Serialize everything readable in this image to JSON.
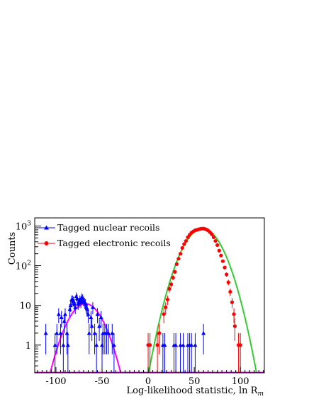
{
  "chart_data": {
    "type": "scatter",
    "xlabel": "Log-likelihood statistic, ln R",
    "xlabel_sub": "m",
    "ylabel": "Counts",
    "xlim": [
      -123,
      126
    ],
    "ylim": [
      0.2,
      1600
    ],
    "y_scale": "log",
    "x_ticks": [
      -100,
      -50,
      0,
      50,
      100
    ],
    "y_ticks": [
      {
        "value": 1,
        "base": "1",
        "exp": ""
      },
      {
        "value": 10,
        "base": "10",
        "exp": ""
      },
      {
        "value": 100,
        "base": "10",
        "exp": "2"
      },
      {
        "value": 1000,
        "base": "10",
        "exp": "3"
      }
    ],
    "grid": false,
    "legend_position": "top-left",
    "legend": [
      {
        "label": "Tagged nuclear recoils",
        "series": "nuclear"
      },
      {
        "label": "Tagged electronic recoils",
        "series": "electronic"
      }
    ],
    "colors": {
      "nuclear": "#0000ff",
      "electronic": "#ff0000",
      "nuclear_fit": "#ff00ff",
      "electronic_fit": "#33cc33",
      "axis": "#000000"
    },
    "series": [
      {
        "name": "Tagged nuclear recoils",
        "id": "nuclear",
        "marker": "triangle",
        "points": [
          [
            -111,
            2
          ],
          [
            -101,
            1
          ],
          [
            -99,
            2
          ],
          [
            -97,
            6
          ],
          [
            -95,
            2
          ],
          [
            -94,
            5
          ],
          [
            -92,
            1
          ],
          [
            -91,
            4
          ],
          [
            -90,
            6
          ],
          [
            -88,
            2
          ],
          [
            -87,
            1
          ],
          [
            -85,
            8
          ],
          [
            -84,
            10
          ],
          [
            -83,
            14
          ],
          [
            -82,
            14
          ],
          [
            -81,
            13
          ],
          [
            -80,
            11
          ],
          [
            -79,
            9
          ],
          [
            -78,
            17
          ],
          [
            -77,
            15
          ],
          [
            -76,
            11
          ],
          [
            -75,
            12
          ],
          [
            -74,
            14
          ],
          [
            -73,
            12
          ],
          [
            -72,
            16
          ],
          [
            -71,
            15
          ],
          [
            -70,
            13
          ],
          [
            -69,
            12
          ],
          [
            -68,
            11
          ],
          [
            -67,
            9
          ],
          [
            -66,
            8
          ],
          [
            -65,
            6
          ],
          [
            -64,
            2
          ],
          [
            -62,
            5
          ],
          [
            -61,
            3
          ],
          [
            -60,
            9
          ],
          [
            -58,
            2
          ],
          [
            -56,
            1
          ],
          [
            -55,
            6
          ],
          [
            -53,
            3
          ],
          [
            -51,
            5
          ],
          [
            -50,
            1
          ],
          [
            -49,
            2
          ],
          [
            -47,
            2
          ],
          [
            -45,
            2
          ],
          [
            -43,
            2
          ],
          [
            -39,
            2
          ],
          [
            -37,
            1
          ],
          [
            16,
            1
          ],
          [
            18,
            1
          ],
          [
            28,
            1
          ],
          [
            30,
            1
          ],
          [
            35,
            1
          ],
          [
            38,
            1
          ],
          [
            43,
            1
          ],
          [
            45,
            1
          ],
          [
            47,
            1
          ],
          [
            51,
            1
          ],
          [
            60,
            2
          ]
        ]
      },
      {
        "name": "Tagged electronic recoils",
        "id": "electronic",
        "marker": "circle",
        "points": [
          [
            0,
            1
          ],
          [
            2,
            1
          ],
          [
            10,
            1
          ],
          [
            12,
            2
          ],
          [
            17,
            6
          ],
          [
            19,
            9
          ],
          [
            21,
            14
          ],
          [
            23,
            26
          ],
          [
            25,
            34
          ],
          [
            27,
            50
          ],
          [
            29,
            70
          ],
          [
            31,
            110
          ],
          [
            33,
            150
          ],
          [
            35,
            200
          ],
          [
            37,
            280
          ],
          [
            39,
            350
          ],
          [
            41,
            420
          ],
          [
            43,
            520
          ],
          [
            45,
            600
          ],
          [
            47,
            680
          ],
          [
            49,
            730
          ],
          [
            51,
            780
          ],
          [
            53,
            800
          ],
          [
            55,
            830
          ],
          [
            57,
            850
          ],
          [
            59,
            860
          ],
          [
            61,
            850
          ],
          [
            63,
            820
          ],
          [
            65,
            770
          ],
          [
            67,
            700
          ],
          [
            69,
            620
          ],
          [
            71,
            520
          ],
          [
            73,
            420
          ],
          [
            75,
            330
          ],
          [
            77,
            240
          ],
          [
            79,
            180
          ],
          [
            81,
            130
          ],
          [
            83,
            90
          ],
          [
            85,
            60
          ],
          [
            87,
            38
          ],
          [
            89,
            22
          ],
          [
            91,
            12
          ],
          [
            93,
            6
          ],
          [
            94,
            3
          ],
          [
            98,
            1
          ],
          [
            100,
            1
          ]
        ]
      }
    ],
    "fits": [
      {
        "id": "nuclear_fit",
        "amp": 11,
        "mean": -68,
        "sigma": 13.5
      },
      {
        "id": "electronic_fit",
        "amp": 860,
        "mean": 59,
        "sigma": 14.3
      }
    ]
  }
}
